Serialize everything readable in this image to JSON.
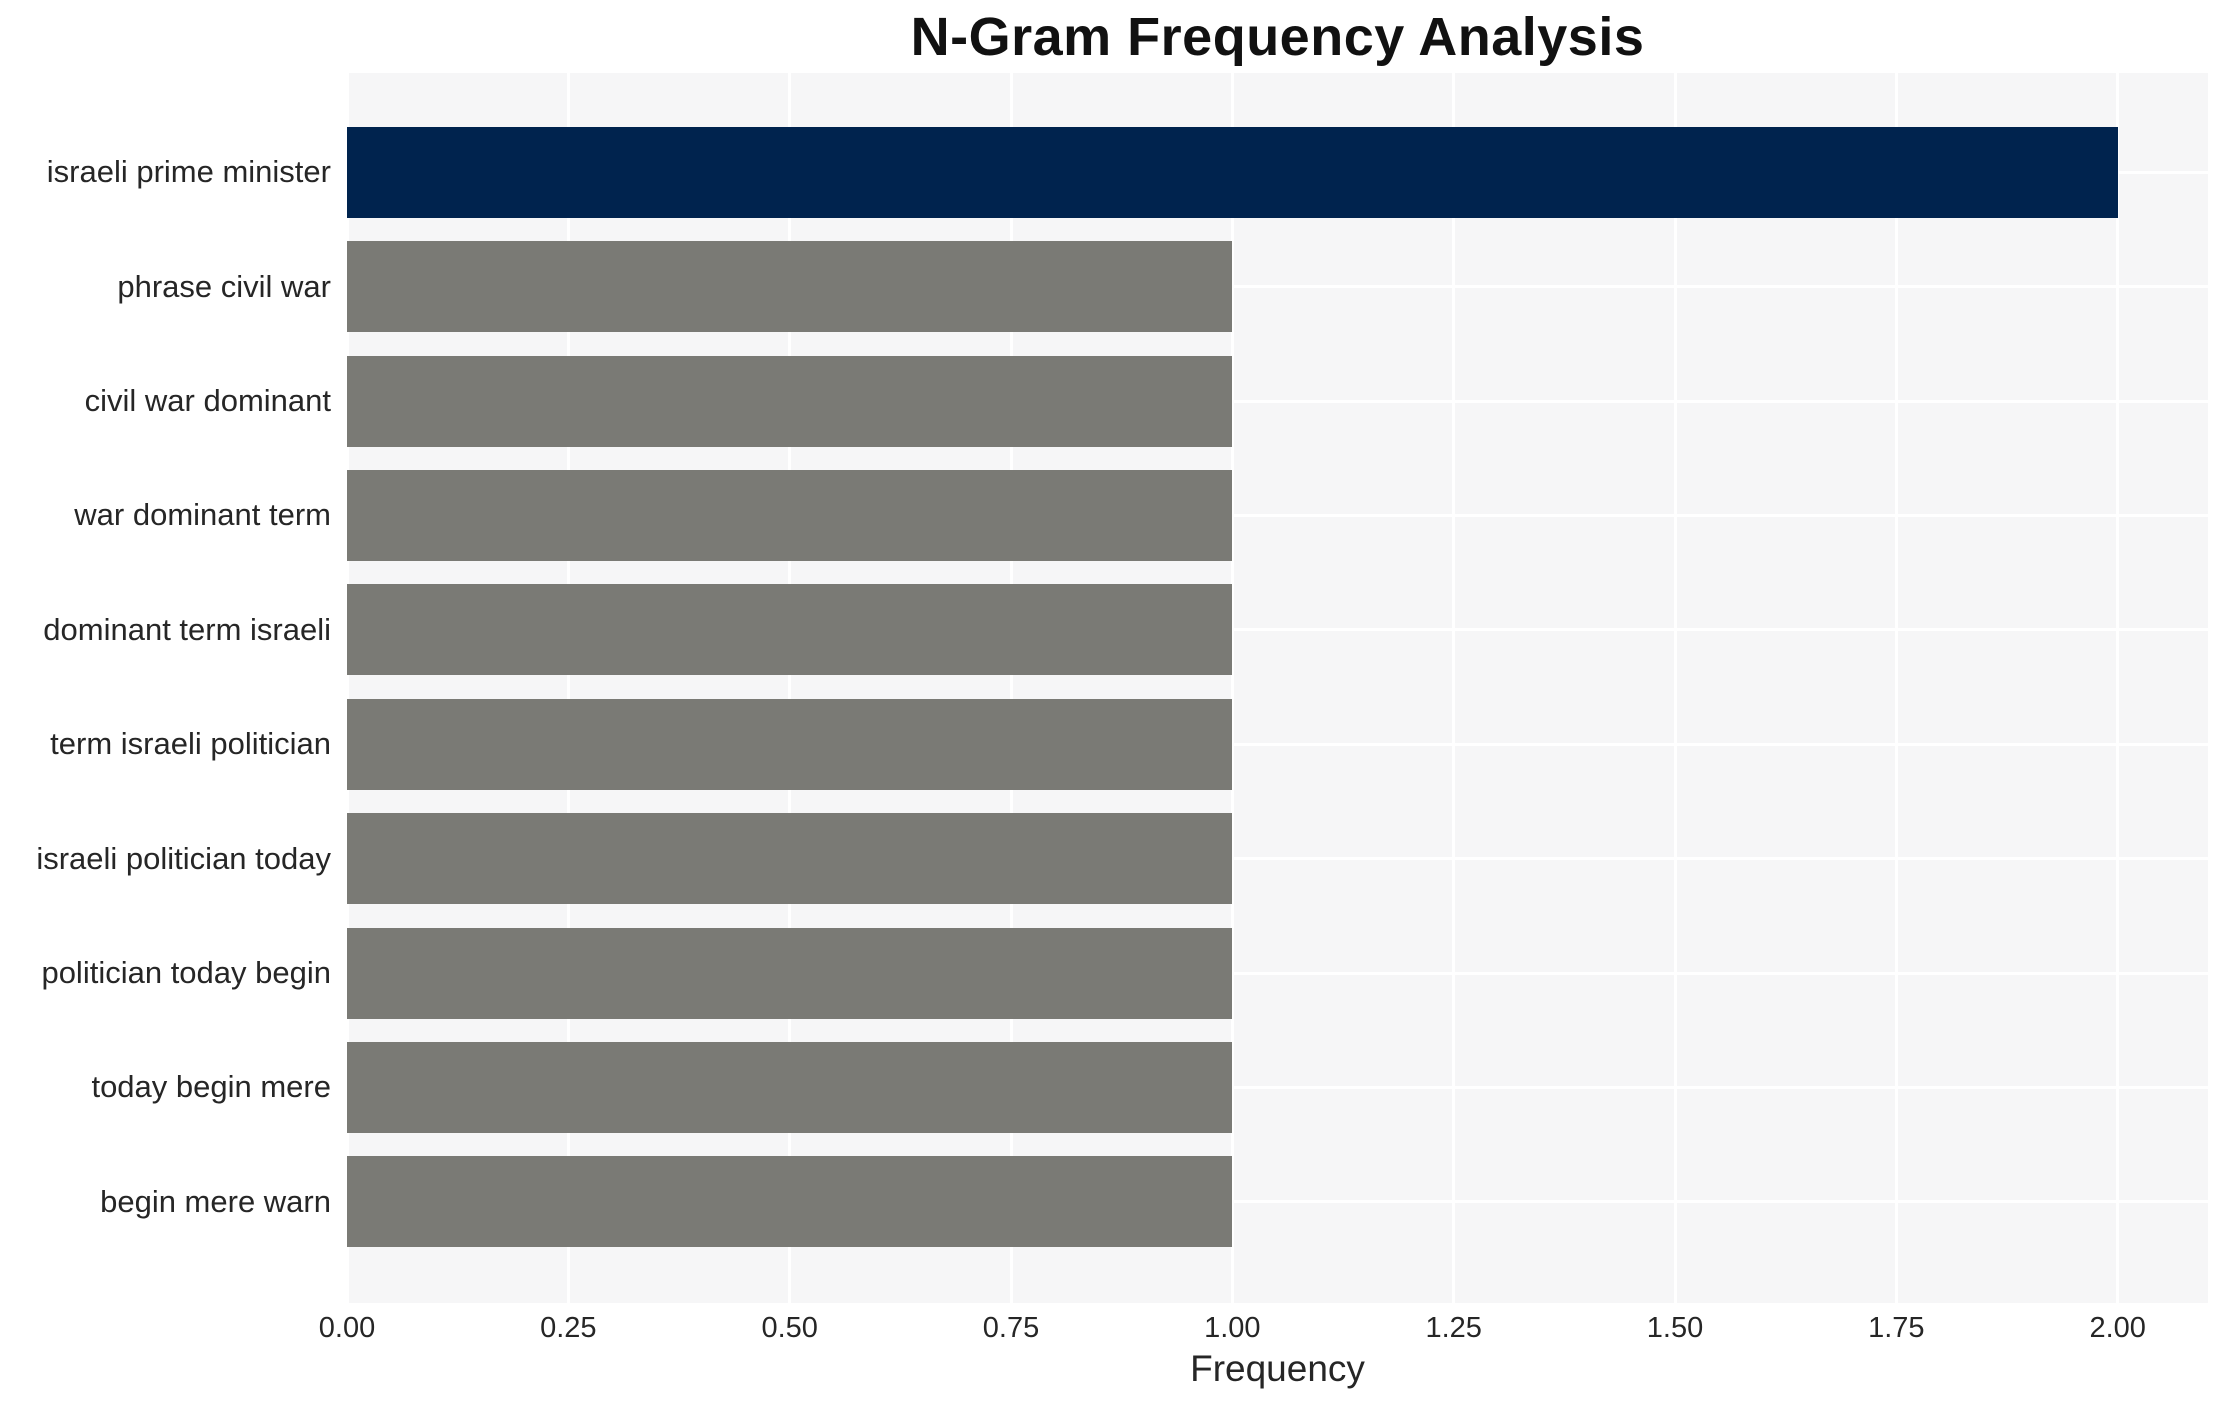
{
  "chart_data": {
    "type": "bar",
    "orientation": "horizontal",
    "title": "N-Gram Frequency Analysis",
    "xlabel": "Frequency",
    "ylabel": "",
    "categories": [
      "israeli prime minister",
      "phrase civil war",
      "civil war dominant",
      "war dominant term",
      "dominant term israeli",
      "term israeli politician",
      "israeli politician today",
      "politician today begin",
      "today begin mere",
      "begin mere warn"
    ],
    "values": [
      2,
      1,
      1,
      1,
      1,
      1,
      1,
      1,
      1,
      1
    ],
    "bar_colors": [
      "#00234E",
      "#7A7A75",
      "#7A7A75",
      "#7A7A75",
      "#7A7A75",
      "#7A7A75",
      "#7A7A75",
      "#7A7A75",
      "#7A7A75",
      "#7A7A75"
    ],
    "xlim": [
      0,
      2.102
    ],
    "xticks": [
      0,
      0.25,
      0.5,
      0.75,
      1.0,
      1.25,
      1.5,
      1.75,
      2.0
    ],
    "xtick_labels": [
      "0.00",
      "0.25",
      "0.50",
      "0.75",
      "1.00",
      "1.25",
      "1.50",
      "1.75",
      "2.00"
    ],
    "grid": true,
    "legend": false,
    "colors": {
      "highlight_bar": "#00234E",
      "default_bar": "#7A7A75",
      "plot_background": "#F6F6F7",
      "gridline": "#FFFFFF",
      "outer_background": "#FFFFFF",
      "text": "#262626",
      "title_text": "#111111"
    }
  }
}
